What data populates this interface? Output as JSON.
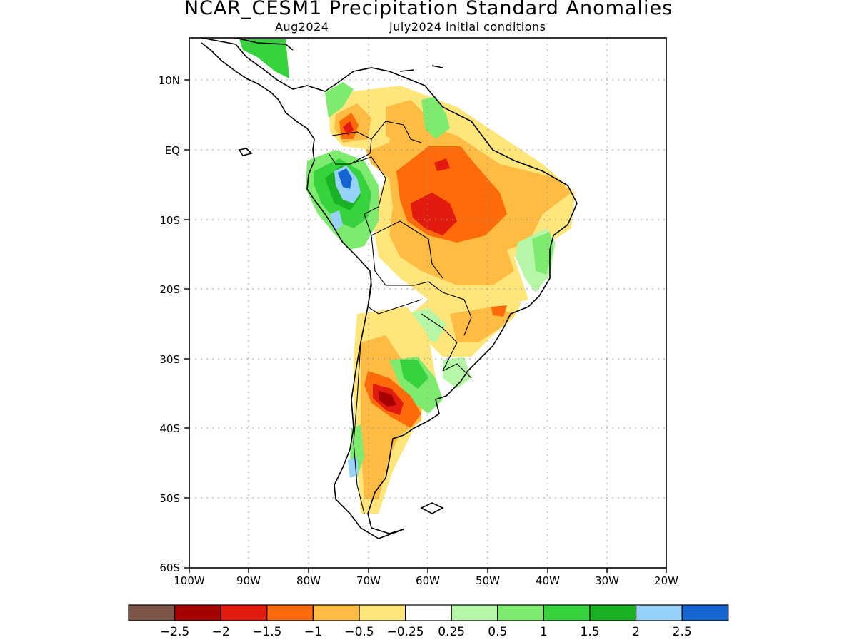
{
  "title": "NCAR_CESM1 Precipitation Standard Anomalies",
  "subtitle_left": "Aug2024",
  "subtitle_right": "July2024 initial conditions",
  "map": {
    "lon_range": [
      -100,
      -20
    ],
    "lat_range": [
      -60,
      15
    ],
    "lon_ticks": [
      "100W",
      "90W",
      "80W",
      "70W",
      "60W",
      "50W",
      "40W",
      "30W",
      "20W"
    ],
    "lat_ticks": [
      "10N",
      "EQ",
      "10S",
      "20S",
      "30S",
      "40S",
      "50S",
      "60S"
    ],
    "grid": "dotted"
  },
  "colorbar": {
    "colors": [
      "#7b5548",
      "#a50000",
      "#e31a0e",
      "#ff6a0a",
      "#ffbb42",
      "#ffe57a",
      "#ffffff",
      "#b5f7a6",
      "#7deb6e",
      "#37d33e",
      "#1ab224",
      "#97d2fb",
      "#1464d2"
    ],
    "labels": [
      "−2.5",
      "−2",
      "−1.5",
      "−1",
      "−0.5",
      "−0.25",
      "0.25",
      "0.5",
      "1",
      "1.5",
      "2",
      "2.5"
    ]
  },
  "anomaly_regions": [
    {
      "region": "Amazon / central Brazil",
      "level": "-1.5"
    },
    {
      "region": "western Amazon (Peru/Ecuador)",
      "level": "2.5"
    },
    {
      "region": "central Argentina",
      "level": "-2"
    },
    {
      "region": "northern Colombia",
      "level": "-1.5"
    },
    {
      "region": "eastern Brazil coast",
      "level": "0.5"
    },
    {
      "region": "southern Argentina",
      "level": "-0.25"
    }
  ]
}
